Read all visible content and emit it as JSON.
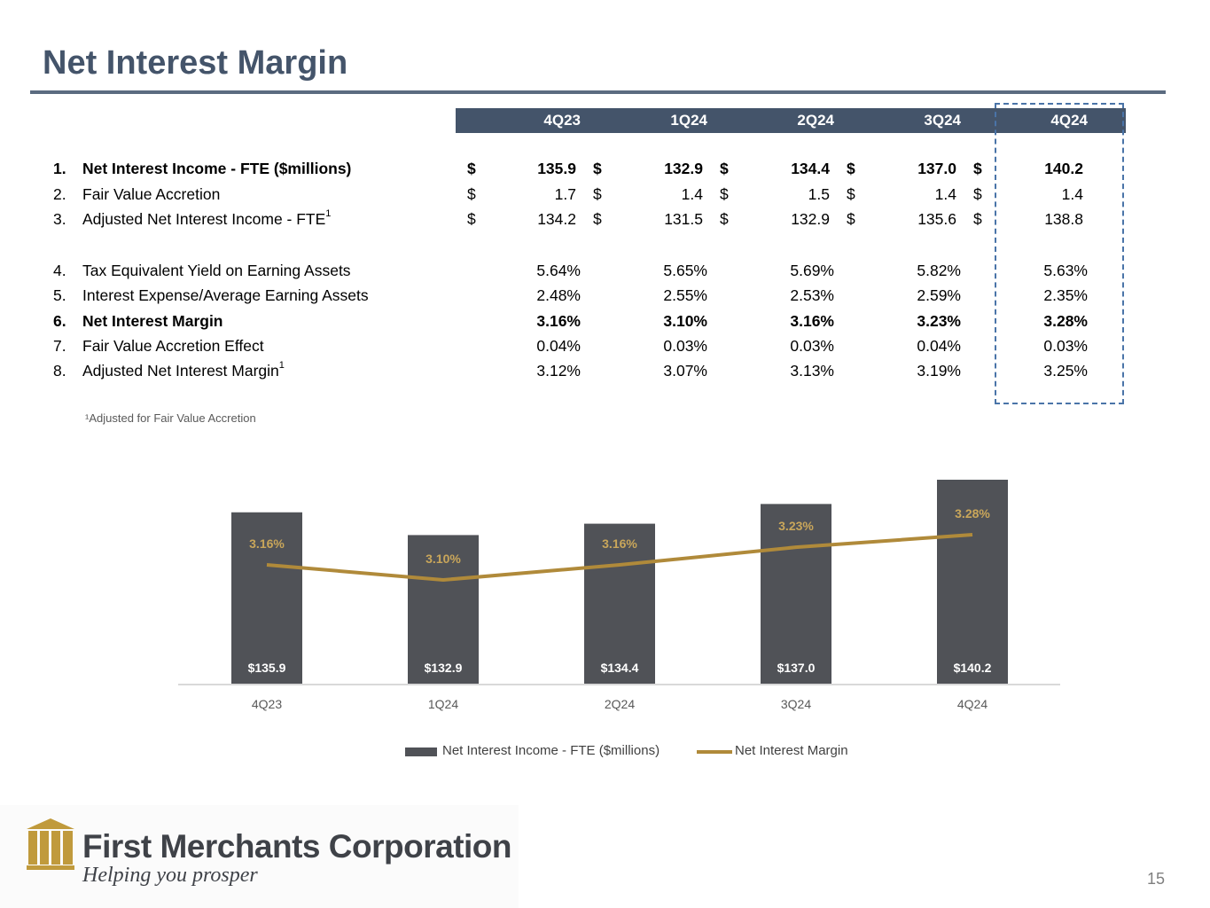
{
  "title": "Net Interest Margin",
  "table": {
    "columns": [
      "4Q23",
      "1Q24",
      "2Q24",
      "3Q24",
      "4Q24"
    ],
    "rows": [
      {
        "num": "1.",
        "label": "Net Interest Income - FTE ($millions)",
        "sup": "",
        "dollar": "$",
        "bold": true,
        "values": [
          "135.9",
          "132.9",
          "134.4",
          "137.0",
          "140.2"
        ]
      },
      {
        "num": "2.",
        "label": "Fair Value Accretion",
        "sup": "",
        "dollar": "$",
        "bold": false,
        "values": [
          "1.7",
          "1.4",
          "1.5",
          "1.4",
          "1.4"
        ]
      },
      {
        "num": "3.",
        "label": "Adjusted Net Interest Income - FTE",
        "sup": "1",
        "dollar": "$",
        "bold": false,
        "values": [
          "134.2",
          "131.5",
          "132.9",
          "135.6",
          "138.8"
        ]
      },
      {
        "num": "4.",
        "label": "Tax Equivalent Yield on Earning Assets",
        "sup": "",
        "dollar": "",
        "bold": false,
        "values": [
          "5.64%",
          "5.65%",
          "5.69%",
          "5.82%",
          "5.63%"
        ]
      },
      {
        "num": "5.",
        "label": "Interest Expense/Average Earning Assets",
        "sup": "",
        "dollar": "",
        "bold": false,
        "values": [
          "2.48%",
          "2.55%",
          "2.53%",
          "2.59%",
          "2.35%"
        ]
      },
      {
        "num": "6.",
        "label": "Net Interest Margin",
        "sup": "",
        "dollar": "",
        "bold": true,
        "values": [
          "3.16%",
          "3.10%",
          "3.16%",
          "3.23%",
          "3.28%"
        ]
      },
      {
        "num": "7.",
        "label": "Fair Value Accretion Effect",
        "sup": "",
        "dollar": "",
        "bold": false,
        "values": [
          "0.04%",
          "0.03%",
          "0.03%",
          "0.04%",
          "0.03%"
        ]
      },
      {
        "num": "8.",
        "label": "Adjusted Net Interest Margin",
        "sup": "1",
        "dollar": "",
        "bold": false,
        "values": [
          "3.12%",
          "3.07%",
          "3.13%",
          "3.19%",
          "3.25%"
        ]
      }
    ]
  },
  "footnote": "¹Adjusted for Fair Value Accretion",
  "chart_data": {
    "type": "bar",
    "categories": [
      "4Q23",
      "1Q24",
      "2Q24",
      "3Q24",
      "4Q24"
    ],
    "series": [
      {
        "name": "Net Interest Income - FTE ($millions)",
        "kind": "bar",
        "values": [
          135.9,
          132.9,
          134.4,
          137.0,
          140.2
        ],
        "labels": [
          "$135.9",
          "$132.9",
          "$134.4",
          "$137.0",
          "$140.2"
        ],
        "color": "#505257"
      },
      {
        "name": "Net Interest Margin",
        "kind": "line",
        "values": [
          3.16,
          3.1,
          3.16,
          3.23,
          3.28
        ],
        "labels": [
          "3.16%",
          "3.10%",
          "3.16%",
          "3.23%",
          "3.28%"
        ],
        "color": "#b08a3a"
      }
    ],
    "legend_position": "bottom",
    "grid": false
  },
  "logo": {
    "name": "First Merchants Corporation",
    "tagline": "Helping you prosper",
    "color": "#c09a3c"
  },
  "page_number": "15"
}
